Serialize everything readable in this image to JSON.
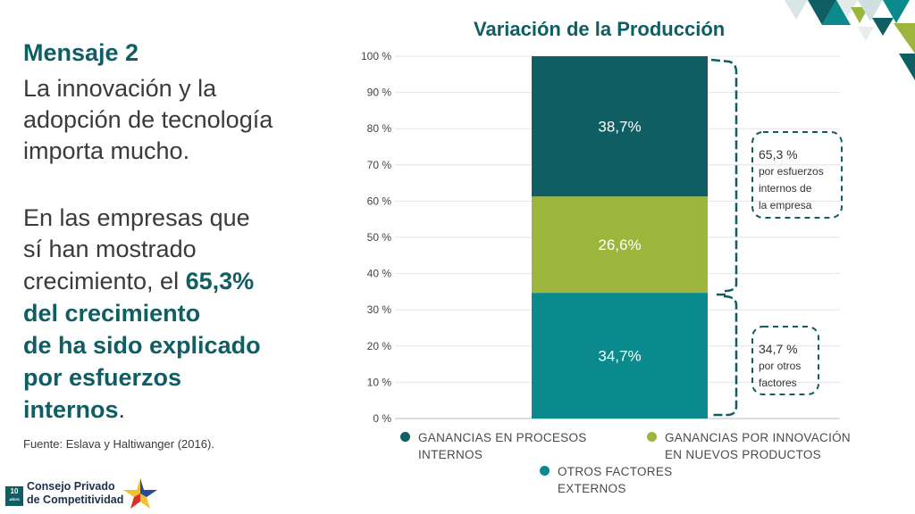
{
  "message": {
    "title": "Mensaje 2",
    "lines1": [
      "La innovación y la",
      "adopción de tecnología",
      "importa mucho."
    ],
    "lines2": [
      "En las empresas que",
      "sí han mostrado"
    ],
    "line_mixed_prefix": "crecimiento, el ",
    "line_mixed_bold": "65,3%",
    "bold_lines": [
      "del crecimiento",
      "de ha sido explicado",
      "por esfuerzos"
    ],
    "last_bold": "internos",
    "last_plain": ".",
    "source": "Fuente:  Eslava  y Haltiwanger (2016)."
  },
  "brand": {
    "badge": "10",
    "badge_sub": "AÑOS",
    "logo_line1": "Consejo Privado",
    "logo_line2": "de Competitividad"
  },
  "colors": {
    "teal_dark": "#0e5e63",
    "olive": "#9cb53c",
    "teal": "#0a8a8c",
    "text": "#3a3a3a"
  },
  "chart_data": {
    "type": "bar",
    "stacked": true,
    "title": "Variación de la Producción",
    "y_ticks": [
      "0 %",
      "10 %",
      "20 %",
      "30 %",
      "40 %",
      "50 %",
      "60 %",
      "70 %",
      "80 %",
      "90 %",
      "100 %"
    ],
    "ylim": [
      0,
      100
    ],
    "series": [
      {
        "name": "OTROS FACTORES EXTERNOS",
        "value": 34.7,
        "label": "34,7%",
        "color": "#0a8a8c"
      },
      {
        "name": "GANANCIAS POR INNOVACIÓN EN NUEVOS PRODUCTOS",
        "value": 26.6,
        "label": "26,6%",
        "color": "#9cb53c"
      },
      {
        "name": "GANANCIAS EN PROCESOS INTERNOS",
        "value": 38.7,
        "label": "38,7%",
        "color": "#0e5e63"
      }
    ],
    "annotations": [
      {
        "pct": "65,3 %",
        "text": [
          "por esfuerzos",
          "internos de",
          "la empresa"
        ]
      },
      {
        "pct": "34,7 %",
        "text": [
          "por otros",
          "factores"
        ]
      }
    ],
    "legend": [
      {
        "lines": [
          "GANANCIAS EN PROCESOS",
          "INTERNOS"
        ],
        "color": "#0e5e63"
      },
      {
        "lines": [
          "GANANCIAS POR INNOVACIÓN",
          "EN NUEVOS PRODUCTOS"
        ],
        "color": "#9cb53c"
      },
      {
        "lines": [
          "OTROS FACTORES",
          "EXTERNOS"
        ],
        "color": "#0a8a8c"
      }
    ]
  }
}
